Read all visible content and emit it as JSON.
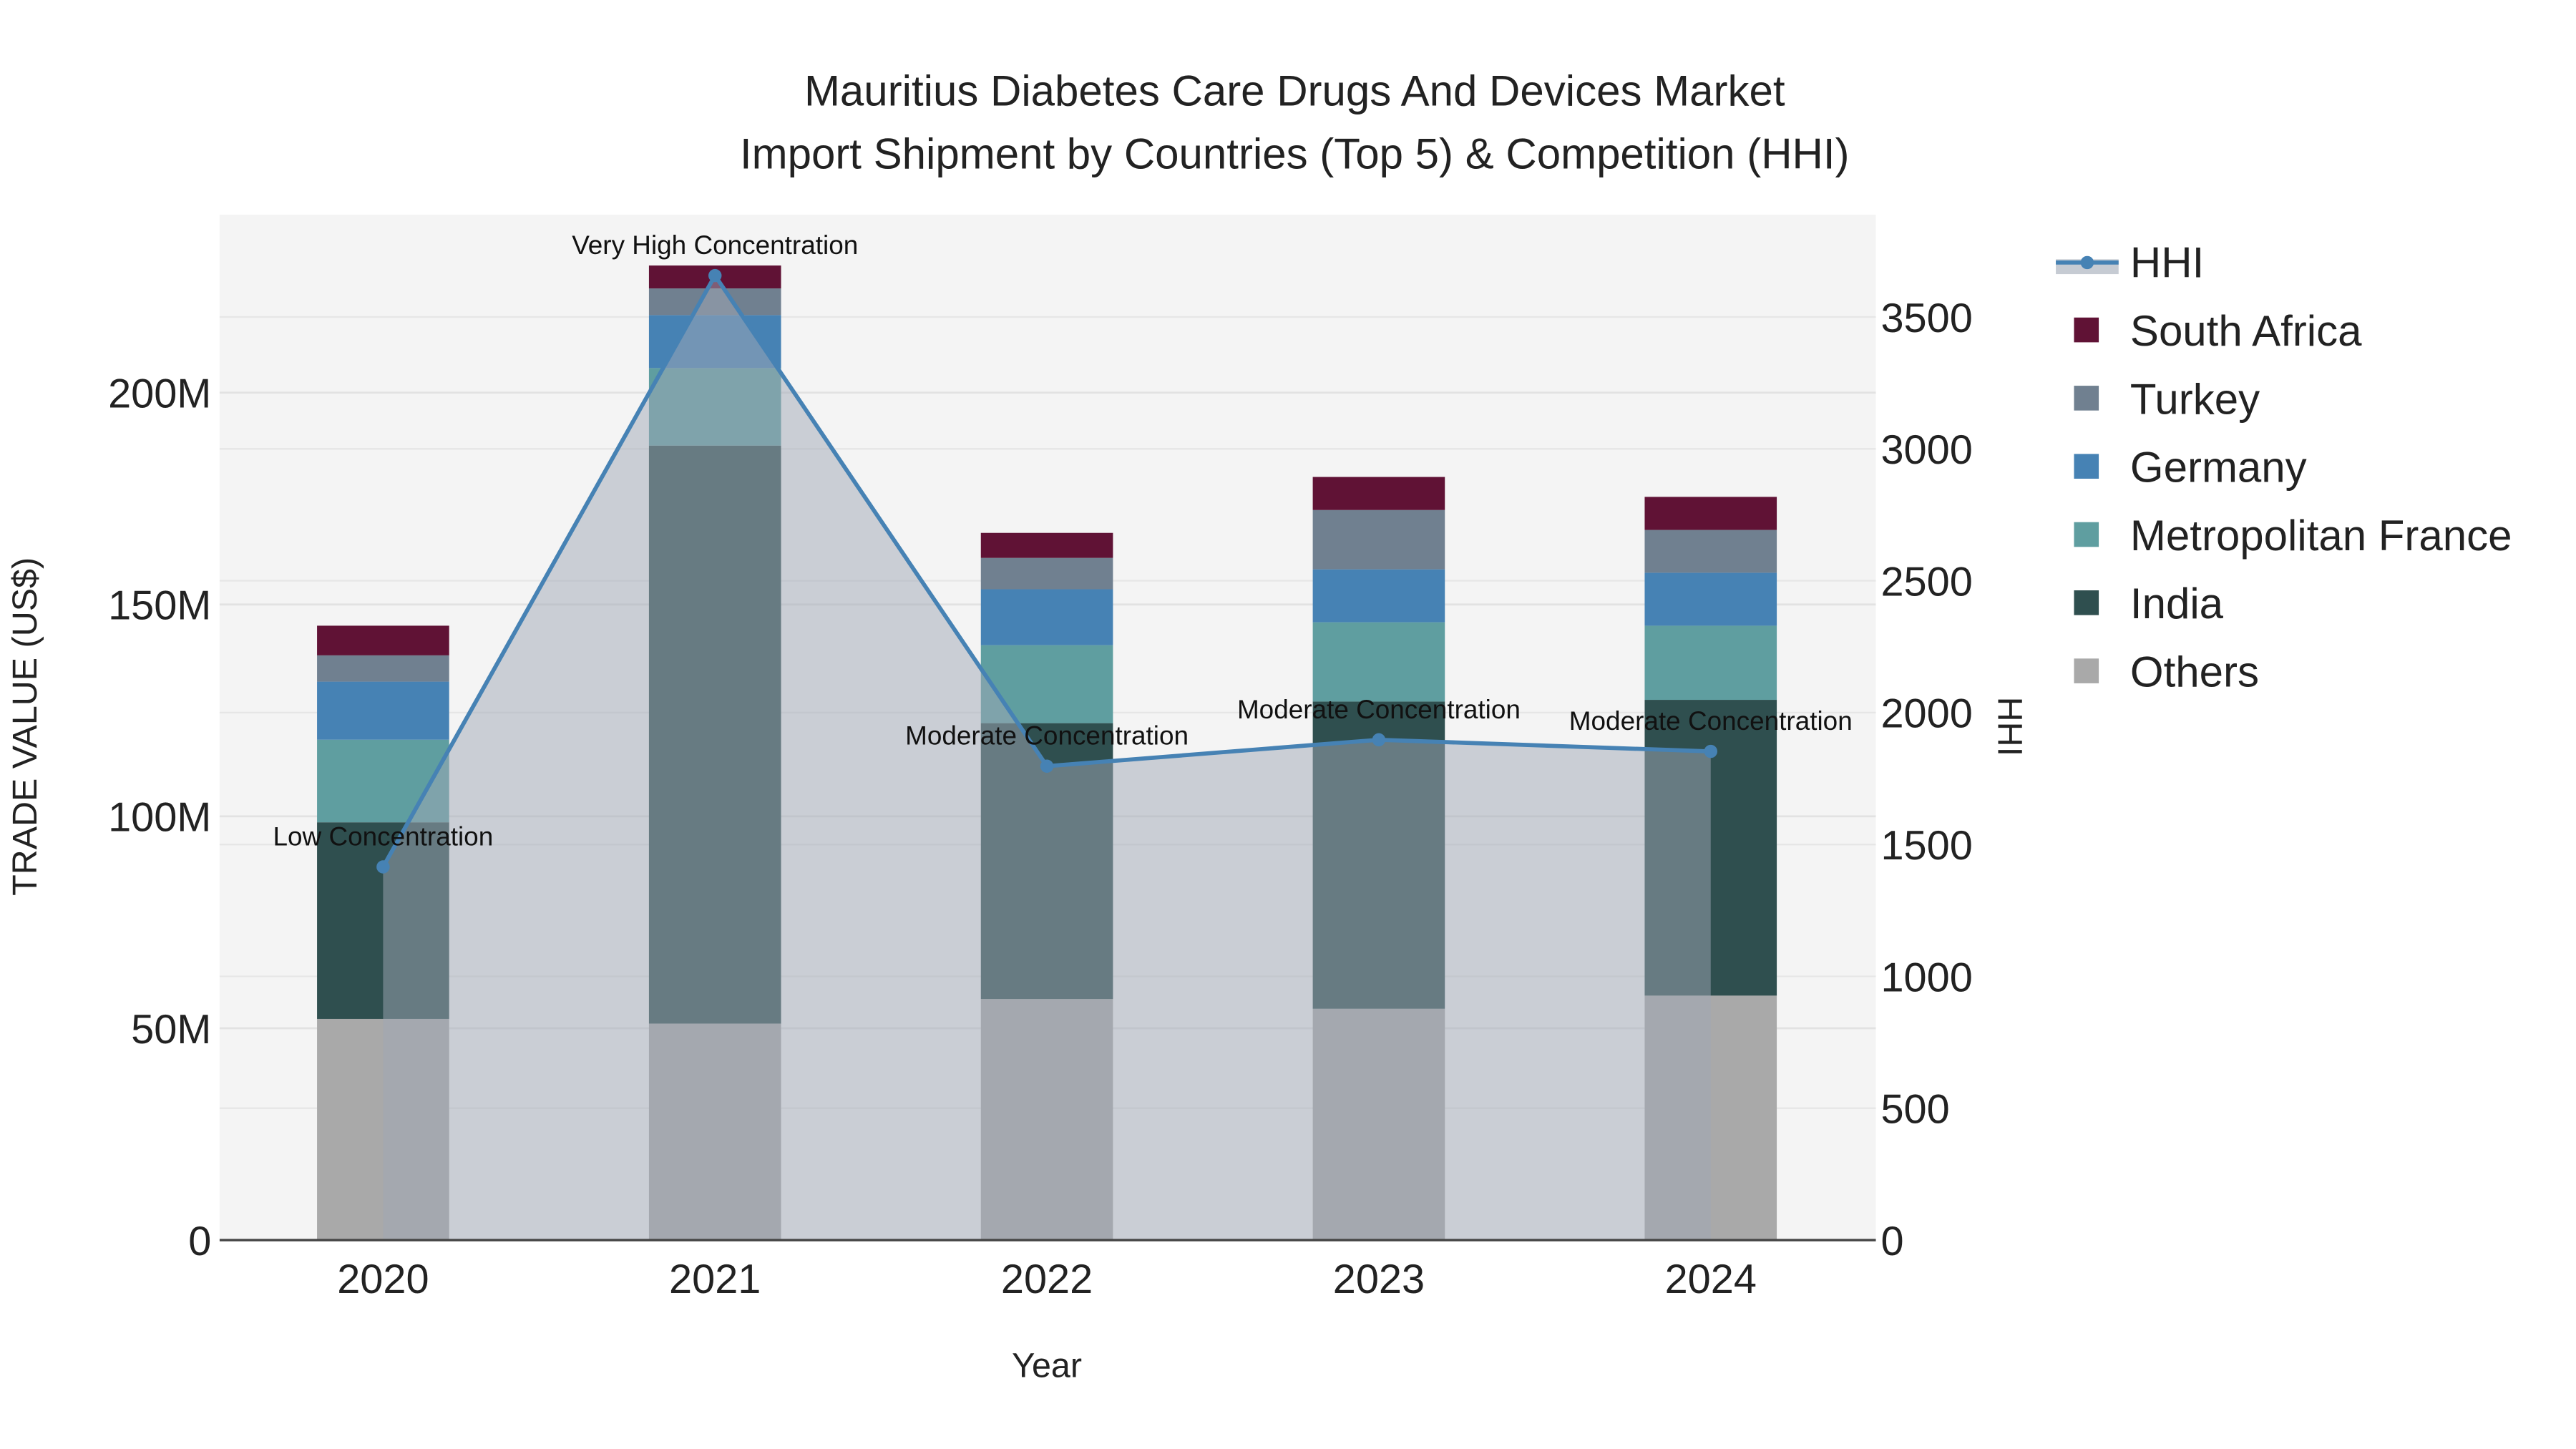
{
  "chart_data": {
    "type": "bar",
    "stacked": true,
    "title": "Mauritius Diabetes Care Drugs And Devices Market",
    "subtitle": "Import Shipment by Countries (Top 5) & Competition (HHI)",
    "xlabel": "Year",
    "ylabel": "TRADE VALUE (US$)",
    "y2label": "HHI",
    "categories": [
      "2020",
      "2021",
      "2022",
      "2023",
      "2024"
    ],
    "ylim": [
      0,
      242
    ],
    "y_unit": "M",
    "yticks": [
      0,
      50,
      100,
      150,
      200
    ],
    "ytick_labels": [
      "0",
      "50M",
      "100M",
      "150M",
      "200M"
    ],
    "y2lim": [
      0,
      3888
    ],
    "y2ticks": [
      0,
      500,
      1000,
      1500,
      2000,
      2500,
      3000,
      3500
    ],
    "y2tick_labels": [
      "0",
      "500",
      "1000",
      "1500",
      "2000",
      "2500",
      "3000",
      "3500"
    ],
    "grid": true,
    "legend_position": "right",
    "series": [
      {
        "name": "Others",
        "color": "#a9a9a9",
        "values": [
          52.2,
          51.1,
          56.9,
          54.6,
          57.7
        ]
      },
      {
        "name": "India",
        "color": "#2f4f4f",
        "values": [
          46.4,
          136.4,
          65.1,
          72.5,
          69.8
        ]
      },
      {
        "name": "Metropolitan France",
        "color": "#5f9ea0",
        "values": [
          19.5,
          18.3,
          18.4,
          18.7,
          17.5
        ]
      },
      {
        "name": "Germany",
        "color": "#4682b4",
        "values": [
          13.7,
          12.5,
          13.2,
          12.5,
          12.5
        ]
      },
      {
        "name": "Turkey",
        "color": "#708090",
        "values": [
          6.2,
          6.3,
          7.4,
          14.0,
          10.1
        ]
      },
      {
        "name": "South Africa",
        "color": "#601235",
        "values": [
          7.0,
          5.4,
          5.9,
          7.8,
          7.8
        ]
      }
    ],
    "hhi": {
      "name": "HHI",
      "color": "#4682b4",
      "values": [
        1415,
        3657,
        1797,
        1897,
        1853
      ],
      "annotations": [
        "Low Concentration",
        "Very High Concentration",
        "Moderate Concentration",
        "Moderate Concentration",
        "Moderate Concentration"
      ]
    },
    "legend_order": [
      "HHI",
      "South Africa",
      "Turkey",
      "Germany",
      "Metropolitan France",
      "India",
      "Others"
    ]
  }
}
